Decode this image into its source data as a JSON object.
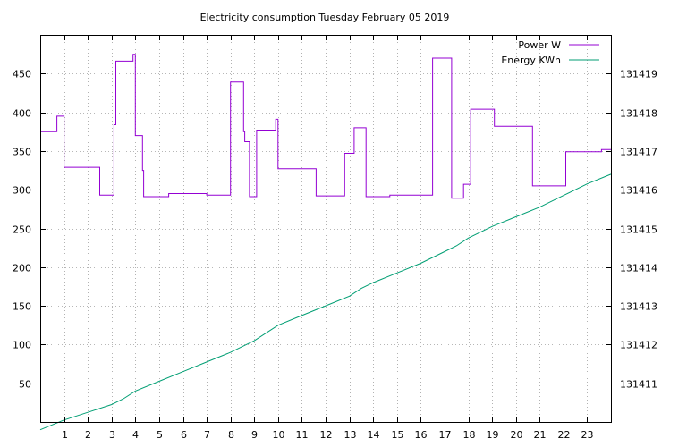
{
  "chart_data": {
    "type": "line",
    "title": "Electricity consumption Tuesday February 05 2019",
    "xlabel": "",
    "ylabel": "",
    "y2label": "",
    "xlim": [
      0,
      24
    ],
    "ylim": [
      0,
      500
    ],
    "y2lim": [
      131410,
      131420
    ],
    "x_ticks": [
      1,
      2,
      3,
      4,
      5,
      6,
      7,
      8,
      9,
      10,
      11,
      12,
      13,
      14,
      15,
      16,
      17,
      18,
      19,
      20,
      21,
      22,
      23
    ],
    "x_tick_labels": [
      "1",
      "2",
      "3",
      "4",
      "5",
      "6",
      "7",
      "8",
      "9",
      "10",
      "11",
      "12",
      "13",
      "14",
      "15",
      "16",
      "17",
      "18",
      "19",
      "20",
      "21",
      "22",
      "23"
    ],
    "y_ticks": [
      50,
      100,
      150,
      200,
      250,
      300,
      350,
      400,
      450
    ],
    "y_tick_labels": [
      "50",
      "100",
      "150",
      "200",
      "250",
      "300",
      "350",
      "400",
      "450"
    ],
    "y2_ticks": [
      131411,
      131412,
      131413,
      131414,
      131415,
      131416,
      131417,
      131418,
      131419
    ],
    "y2_tick_labels": [
      "131411",
      "131412",
      "131413",
      "131414",
      "131415",
      "131416",
      "131417",
      "131418",
      "131419"
    ],
    "grid": true,
    "legend_position": "top-right",
    "series": [
      {
        "name": "Power W",
        "axis": "left",
        "step": true,
        "color": "#9400d3",
        "x": [
          0.0,
          0.7,
          1.0,
          2.5,
          3.1,
          3.18,
          3.25,
          3.9,
          4.0,
          4.3,
          4.35,
          5.4,
          7.0,
          8.0,
          8.55,
          8.6,
          8.8,
          9.1,
          9.9,
          10.0,
          11.6,
          12.8,
          13.2,
          13.7,
          14.7,
          16.5,
          17.3,
          17.8,
          18.1,
          19.1,
          20.7,
          22.1,
          23.6,
          23.9
        ],
        "y": [
          375,
          395,
          329,
          293,
          384,
          466,
          466,
          475,
          370,
          325,
          291,
          295,
          293,
          439,
          375,
          362,
          291,
          377,
          391,
          327,
          292,
          347,
          380,
          291,
          293,
          470,
          289,
          307,
          404,
          382,
          305,
          349,
          352,
          352
        ]
      },
      {
        "name": "Energy KWh",
        "axis": "right",
        "step": false,
        "color": "#009e73",
        "x": [
          0.0,
          1.0,
          2.0,
          3.0,
          3.5,
          4.0,
          5.0,
          6.0,
          7.0,
          8.0,
          8.5,
          9.0,
          10.0,
          11.0,
          12.0,
          13.0,
          13.5,
          14.0,
          15.0,
          16.0,
          16.5,
          17.0,
          17.5,
          18.0,
          19.0,
          20.0,
          21.0,
          22.0,
          23.0,
          24.0
        ],
        "y": [
          131409.8,
          131410.05,
          131410.25,
          131410.45,
          131410.6,
          131410.8,
          131411.05,
          131411.3,
          131411.55,
          131411.8,
          131411.95,
          131412.1,
          131412.5,
          131412.75,
          131413.0,
          131413.25,
          131413.45,
          131413.6,
          131413.85,
          131414.1,
          131414.25,
          131414.4,
          131414.55,
          131414.75,
          131415.05,
          131415.3,
          131415.55,
          131415.85,
          131416.15,
          131416.4
        ]
      }
    ]
  }
}
